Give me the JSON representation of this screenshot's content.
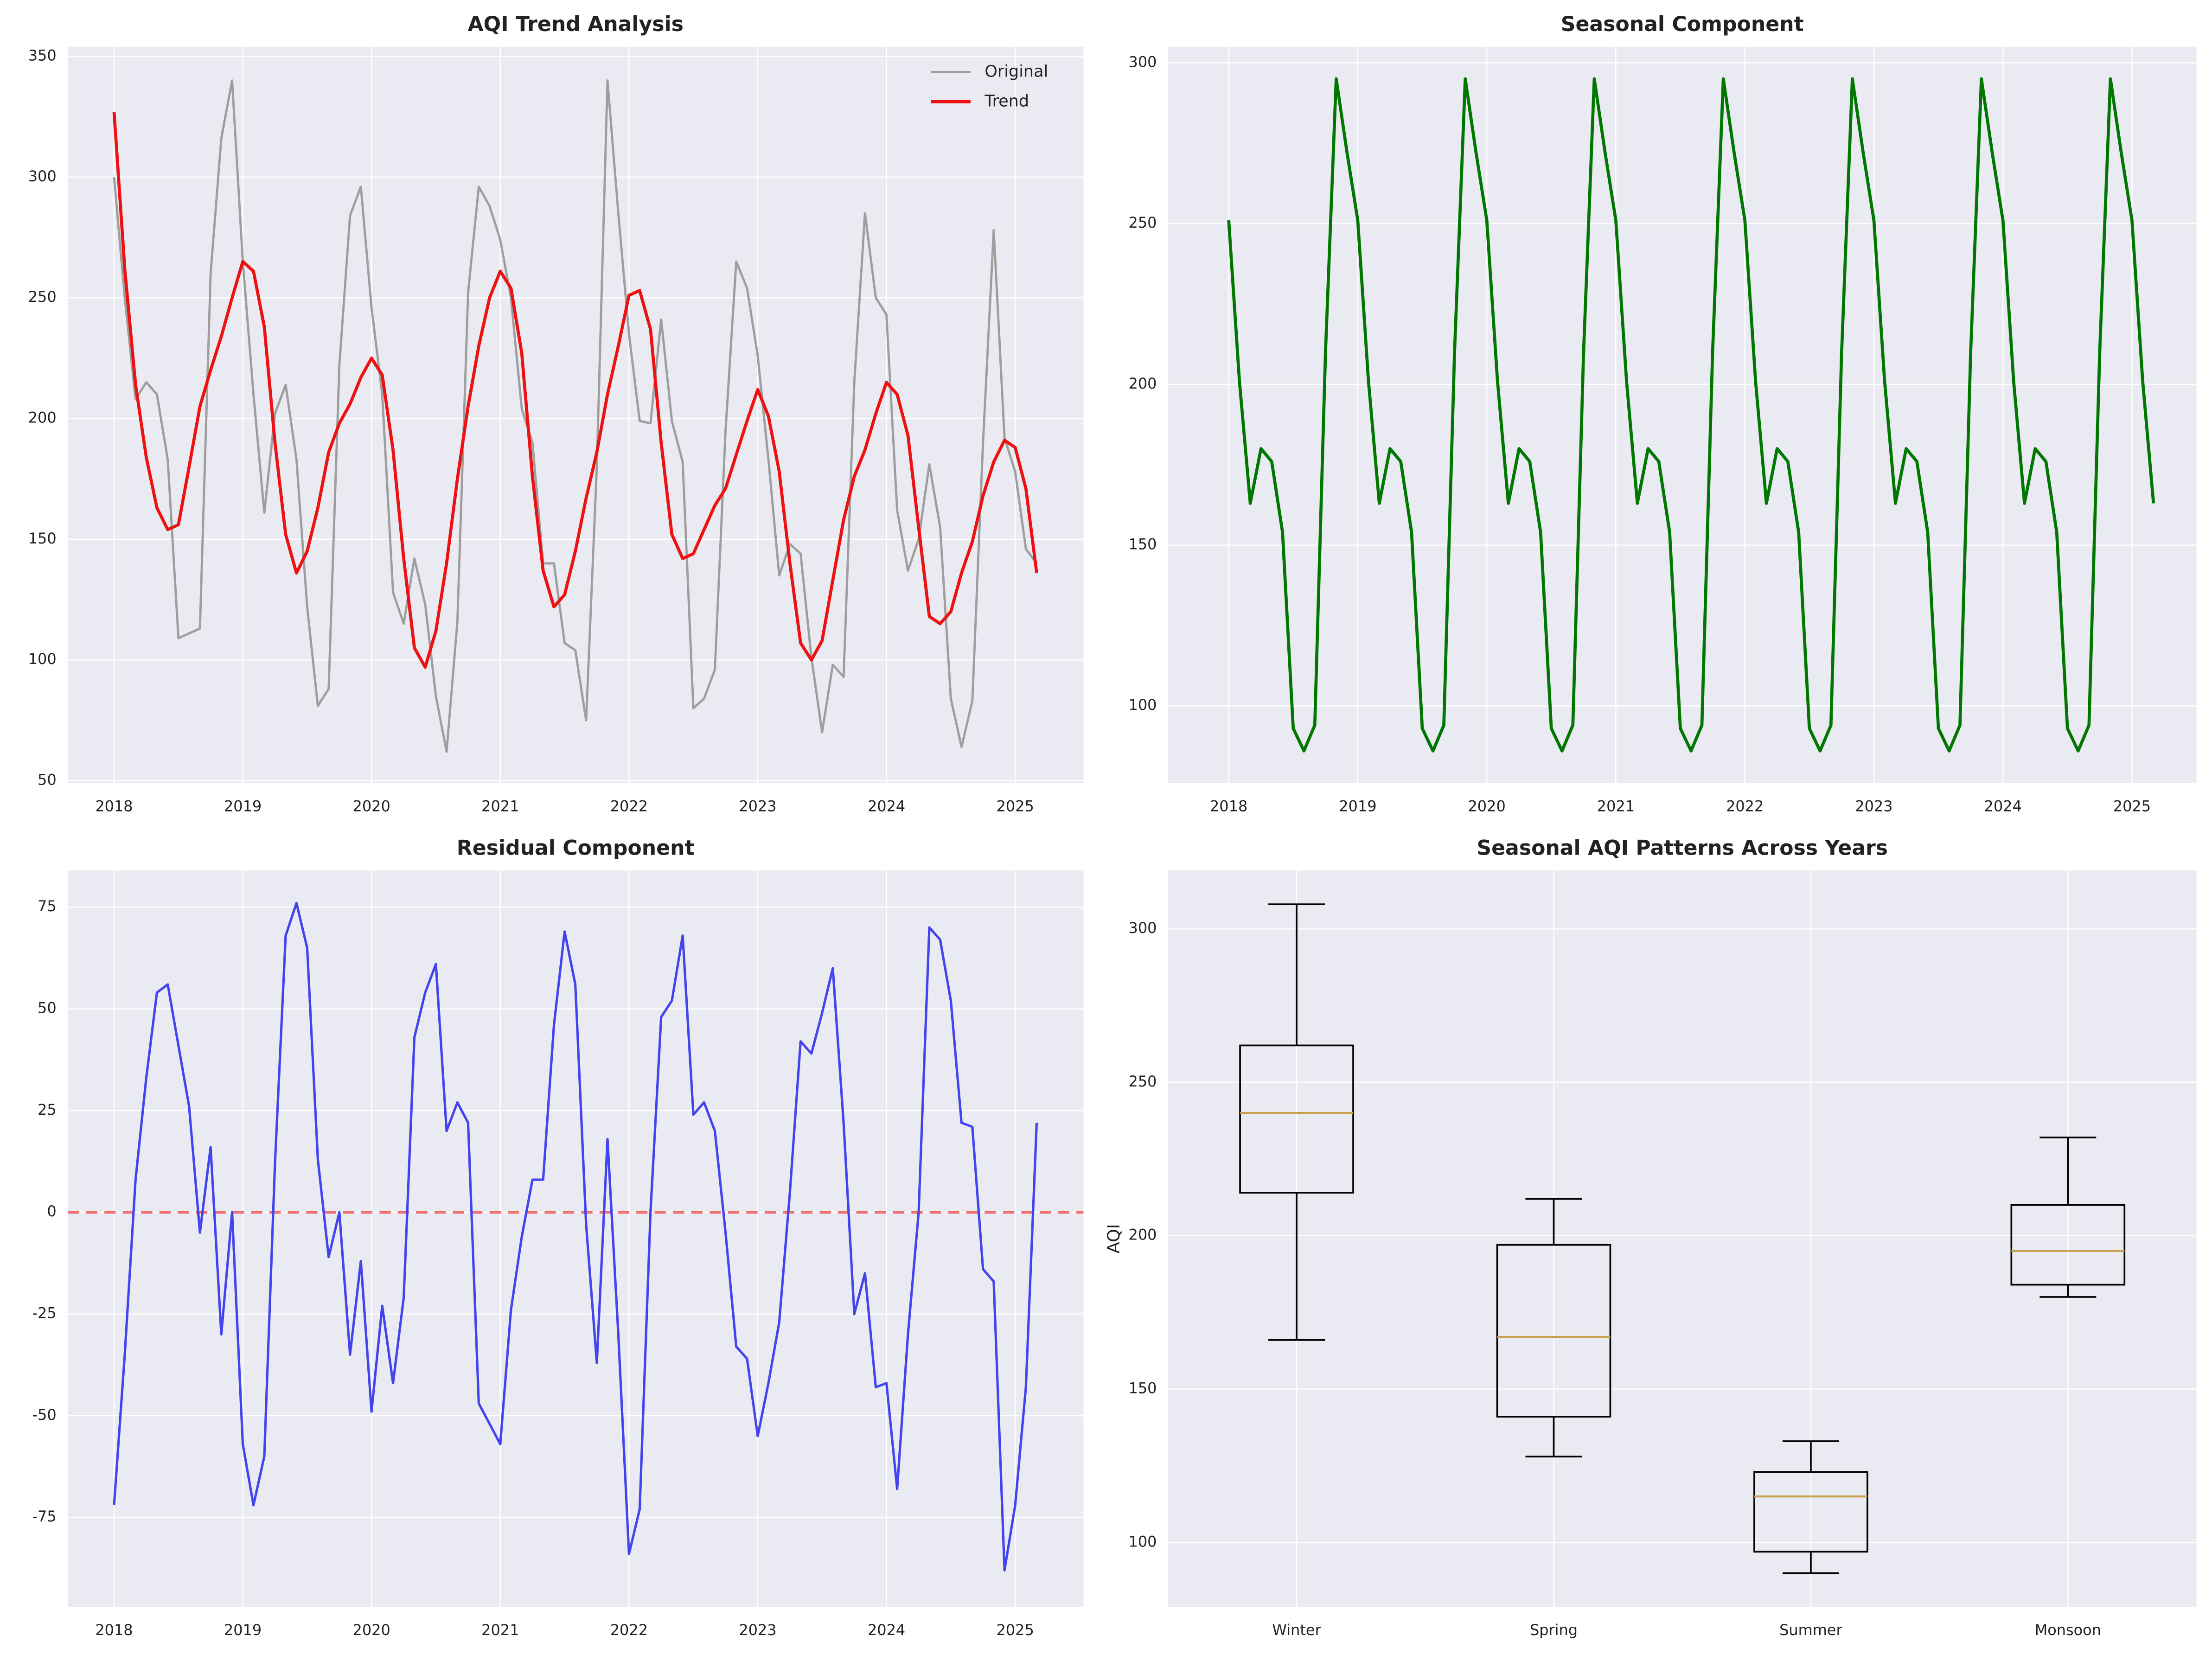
{
  "chart_data": [
    {
      "type": "line",
      "title": "AQI Trend Analysis",
      "x": [
        2018,
        2018.083,
        2018.167,
        2018.25,
        2018.333,
        2018.417,
        2018.5,
        2018.583,
        2018.667,
        2018.75,
        2018.833,
        2018.917,
        2019,
        2019.083,
        2019.167,
        2019.25,
        2019.333,
        2019.417,
        2019.5,
        2019.583,
        2019.667,
        2019.75,
        2019.833,
        2019.917,
        2020,
        2020.083,
        2020.167,
        2020.25,
        2020.333,
        2020.417,
        2020.5,
        2020.583,
        2020.667,
        2020.75,
        2020.833,
        2020.917,
        2021,
        2021.083,
        2021.167,
        2021.25,
        2021.333,
        2021.417,
        2021.5,
        2021.583,
        2021.667,
        2021.75,
        2021.833,
        2021.917,
        2022,
        2022.083,
        2022.167,
        2022.25,
        2022.333,
        2022.417,
        2022.5,
        2022.583,
        2022.667,
        2022.75,
        2022.833,
        2022.917,
        2023,
        2023.083,
        2023.167,
        2023.25,
        2023.333,
        2023.417,
        2023.5,
        2023.583,
        2023.667,
        2023.75,
        2023.833,
        2023.917,
        2024,
        2024.083,
        2024.167,
        2024.25,
        2024.333,
        2024.417,
        2024.5,
        2024.583,
        2024.667,
        2024.75,
        2024.833,
        2024.917,
        2025,
        2025.083,
        2025.167
      ],
      "series": [
        {
          "name": "Original",
          "color": "#9e9e9e",
          "width": 1.6,
          "values": [
            300,
            250,
            208,
            215,
            210,
            183,
            109,
            111,
            113,
            260,
            316,
            340,
            265,
            210,
            161,
            202,
            214,
            183,
            122,
            81,
            88,
            222,
            284,
            296,
            246,
            210,
            128,
            115,
            142,
            123,
            85,
            62,
            116,
            252,
            296,
            288,
            274,
            250,
            204,
            190,
            140,
            140,
            107,
            104,
            75,
            180,
            340,
            285,
            235,
            199,
            198,
            241,
            199,
            182,
            80,
            84,
            96,
            195,
            265,
            254,
            226,
            183,
            135,
            148,
            144,
            101,
            70,
            98,
            93,
            215,
            285,
            250,
            243,
            162,
            137,
            150,
            181,
            155,
            84,
            64,
            83,
            190,
            278,
            192,
            178,
            146,
            140
          ]
        },
        {
          "name": "Trend",
          "color": "#ee1111",
          "width": 2.2,
          "values": [
            327,
            262,
            214,
            184,
            163,
            154,
            156,
            180,
            205,
            220,
            234,
            250,
            265,
            261,
            238,
            190,
            152,
            136,
            145,
            163,
            186,
            198,
            206,
            217,
            225,
            218,
            187,
            142,
            105,
            97,
            112,
            140,
            175,
            205,
            230,
            250,
            261,
            254,
            227,
            176,
            137,
            122,
            127,
            145,
            167,
            186,
            210,
            230,
            251,
            253,
            237,
            190,
            152,
            142,
            144,
            154,
            164,
            171,
            185,
            199,
            212,
            201,
            178,
            140,
            107,
            100,
            108,
            133,
            158,
            176,
            187,
            202,
            215,
            210,
            193,
            155,
            118,
            115,
            120,
            136,
            149,
            168,
            182,
            191,
            188,
            171,
            136
          ]
        }
      ],
      "xlim": [
        2017.64,
        2025.53
      ],
      "xticks": [
        2018,
        2019,
        2020,
        2021,
        2022,
        2023,
        2024,
        2025
      ],
      "ylim": [
        49,
        354
      ],
      "yticks": [
        50,
        100,
        150,
        200,
        250,
        300,
        350
      ],
      "grid": true,
      "legend": "upper right"
    },
    {
      "type": "line",
      "title": "Seasonal Component",
      "x": [
        2018,
        2018.083,
        2018.167,
        2018.25,
        2018.333,
        2018.417,
        2018.5,
        2018.583,
        2018.667,
        2018.75,
        2018.833,
        2018.917,
        2019,
        2019.083,
        2019.167,
        2019.25,
        2019.333,
        2019.417,
        2019.5,
        2019.583,
        2019.667,
        2019.75,
        2019.833,
        2019.917,
        2020,
        2020.083,
        2020.167,
        2020.25,
        2020.333,
        2020.417,
        2020.5,
        2020.583,
        2020.667,
        2020.75,
        2020.833,
        2020.917,
        2021,
        2021.083,
        2021.167,
        2021.25,
        2021.333,
        2021.417,
        2021.5,
        2021.583,
        2021.667,
        2021.75,
        2021.833,
        2021.917,
        2022,
        2022.083,
        2022.167,
        2022.25,
        2022.333,
        2022.417,
        2022.5,
        2022.583,
        2022.667,
        2022.75,
        2022.833,
        2022.917,
        2023,
        2023.083,
        2023.167,
        2023.25,
        2023.333,
        2023.417,
        2023.5,
        2023.583,
        2023.667,
        2023.75,
        2023.833,
        2023.917,
        2024,
        2024.083,
        2024.167,
        2024.25,
        2024.333,
        2024.417,
        2024.5,
        2024.583,
        2024.667,
        2024.75,
        2024.833,
        2024.917,
        2025,
        2025.083,
        2025.167
      ],
      "color": "#007700",
      "width": 2.2,
      "values": [
        251,
        201,
        163,
        180,
        176,
        154,
        93,
        86,
        94,
        210,
        295,
        272,
        251,
        201,
        163,
        180,
        176,
        154,
        93,
        86,
        94,
        210,
        295,
        272,
        251,
        201,
        163,
        180,
        176,
        154,
        93,
        86,
        94,
        210,
        295,
        272,
        251,
        201,
        163,
        180,
        176,
        154,
        93,
        86,
        94,
        210,
        295,
        272,
        251,
        201,
        163,
        180,
        176,
        154,
        93,
        86,
        94,
        210,
        295,
        272,
        251,
        201,
        163,
        180,
        176,
        154,
        93,
        86,
        94,
        210,
        295,
        272,
        251,
        201,
        163,
        180,
        176,
        154,
        93,
        86,
        94,
        210,
        295,
        272,
        251,
        201,
        163
      ],
      "xlim": [
        2017.53,
        2025.5
      ],
      "xticks": [
        2018,
        2019,
        2020,
        2021,
        2022,
        2023,
        2024,
        2025
      ],
      "ylim": [
        76,
        305
      ],
      "yticks": [
        100,
        150,
        200,
        250,
        300
      ],
      "grid": true
    },
    {
      "type": "line",
      "title": "Residual Component",
      "x": [
        2018,
        2018.083,
        2018.167,
        2018.25,
        2018.333,
        2018.417,
        2018.5,
        2018.583,
        2018.667,
        2018.75,
        2018.833,
        2018.917,
        2019,
        2019.083,
        2019.167,
        2019.25,
        2019.333,
        2019.417,
        2019.5,
        2019.583,
        2019.667,
        2019.75,
        2019.833,
        2019.917,
        2020,
        2020.083,
        2020.167,
        2020.25,
        2020.333,
        2020.417,
        2020.5,
        2020.583,
        2020.667,
        2020.75,
        2020.833,
        2020.917,
        2021,
        2021.083,
        2021.167,
        2021.25,
        2021.333,
        2021.417,
        2021.5,
        2021.583,
        2021.667,
        2021.75,
        2021.833,
        2021.917,
        2022,
        2022.083,
        2022.167,
        2022.25,
        2022.333,
        2022.417,
        2022.5,
        2022.583,
        2022.667,
        2022.75,
        2022.833,
        2022.917,
        2023,
        2023.083,
        2023.167,
        2023.25,
        2023.333,
        2023.417,
        2023.5,
        2023.583,
        2023.667,
        2023.75,
        2023.833,
        2023.917,
        2024,
        2024.083,
        2024.167,
        2024.25,
        2024.333,
        2024.417,
        2024.5,
        2024.583,
        2024.667,
        2024.75,
        2024.833,
        2024.917,
        2025,
        2025.083,
        2025.167
      ],
      "color": "#4444ee",
      "width": 1.7,
      "values": [
        -72,
        -35,
        8,
        33,
        54,
        56,
        41,
        26,
        -5,
        16,
        -30,
        0,
        -57,
        -72,
        -60,
        12,
        68,
        76,
        65,
        13,
        -11,
        0,
        -35,
        -12,
        -49,
        -23,
        -42,
        -21,
        43,
        54,
        61,
        20,
        27,
        22,
        -47,
        -52,
        -57,
        -24,
        -6,
        8,
        8,
        46,
        69,
        56,
        -3,
        -37,
        18,
        -30,
        -84,
        -73,
        0,
        48,
        52,
        68,
        24,
        27,
        20,
        -5,
        -33,
        -36,
        -55,
        -42,
        -27,
        5,
        42,
        39,
        49,
        60,
        22,
        -25,
        -15,
        -43,
        -42,
        -68,
        -30,
        0,
        70,
        67,
        52,
        22,
        21,
        -14,
        -17,
        -88,
        -72,
        -43,
        22
      ],
      "reference_line": {
        "y": 0,
        "color": "#f07070"
      },
      "xlim": [
        2017.64,
        2025.53
      ],
      "xticks": [
        2018,
        2019,
        2020,
        2021,
        2022,
        2023,
        2024,
        2025
      ],
      "ylim": [
        -97,
        84
      ],
      "yticks": [
        -75,
        -50,
        -25,
        0,
        25,
        50,
        75
      ],
      "grid": true
    },
    {
      "type": "box",
      "title": "Seasonal AQI Patterns Across Years",
      "y_label": "AQI",
      "categories": [
        "Winter",
        "Spring",
        "Summer",
        "Monsoon"
      ],
      "boxes": [
        {
          "whislo": 166,
          "q1": 214,
          "med": 240,
          "q3": 262,
          "whishi": 308
        },
        {
          "whislo": 128,
          "q1": 141,
          "med": 167,
          "q3": 197,
          "whishi": 212
        },
        {
          "whislo": 90,
          "q1": 97,
          "med": 115,
          "q3": 123,
          "whishi": 133
        },
        {
          "whislo": 180,
          "q1": 184,
          "med": 195,
          "q3": 210,
          "whishi": 232
        }
      ],
      "color": "#000000",
      "median_color": "#c8a050",
      "ylim": [
        79,
        319
      ],
      "yticks": [
        100,
        150,
        200,
        250,
        300
      ],
      "grid": true
    }
  ]
}
